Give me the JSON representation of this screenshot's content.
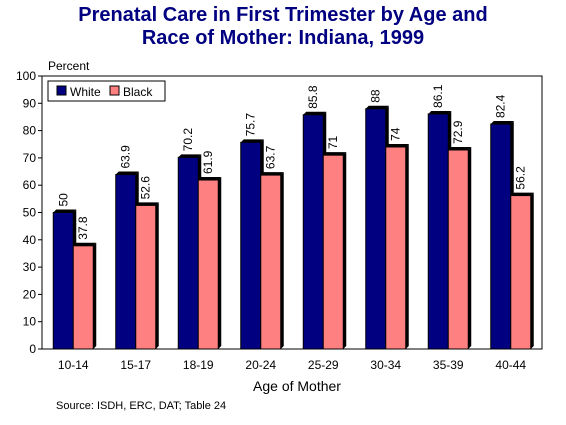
{
  "chart_data": {
    "type": "bar",
    "title_line1": "Prenatal Care in First Trimester by Age and",
    "title_line2": "Race of Mother:  Indiana, 1999",
    "ylabel": "Percent",
    "xlabel": "Age of Mother",
    "ylim": [
      0,
      100
    ],
    "yticks": [
      0,
      10,
      20,
      30,
      40,
      50,
      60,
      70,
      80,
      90,
      100
    ],
    "categories": [
      "10-14",
      "15-17",
      "18-19",
      "20-24",
      "25-29",
      "30-34",
      "35-39",
      "40-44"
    ],
    "series": [
      {
        "name": "White",
        "color": "#000080",
        "values": [
          50,
          63.9,
          70.2,
          75.7,
          85.8,
          88,
          86.1,
          82.4
        ],
        "labels": [
          "50",
          "63.9",
          "70.2",
          "75.7",
          "85.8",
          "88",
          "86.1",
          "82.4"
        ]
      },
      {
        "name": "Black",
        "color": "#ff8080",
        "values": [
          37.8,
          52.6,
          61.9,
          63.7,
          71,
          74,
          72.9,
          56.2
        ],
        "labels": [
          "37.8",
          "52.6",
          "61.9",
          "63.7",
          "71",
          "74",
          "72.9",
          "56.2"
        ]
      }
    ],
    "legend_position": "top-left",
    "grid": false,
    "source": "Source: ISDH, ERC, DAT; Table 24"
  }
}
